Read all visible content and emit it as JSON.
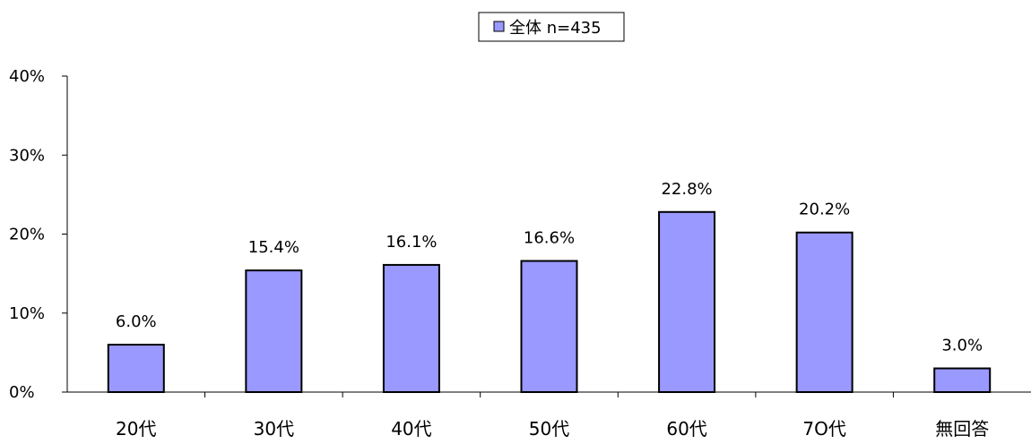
{
  "chart_data": {
    "type": "bar",
    "categories": [
      "20代",
      "30代",
      "40代",
      "50代",
      "60代",
      "7O代",
      "無回答"
    ],
    "series": [
      {
        "name": "全体 n=435",
        "values": [
          6.0,
          15.4,
          16.1,
          16.6,
          22.8,
          20.2,
          3.0
        ]
      }
    ],
    "data_labels": [
      "6.0%",
      "15.4%",
      "16.1%",
      "16.6%",
      "22.8%",
      "20.2%",
      "3.0%"
    ],
    "y_ticks": [
      "0%",
      "10%",
      "20%",
      "30%",
      "40%"
    ],
    "ylim": [
      0,
      40
    ],
    "title": "",
    "xlabel": "",
    "ylabel": "",
    "grid": false,
    "legend_placement": "top-center",
    "bar_color": "#9999ff",
    "bar_border_color": "#000000"
  }
}
